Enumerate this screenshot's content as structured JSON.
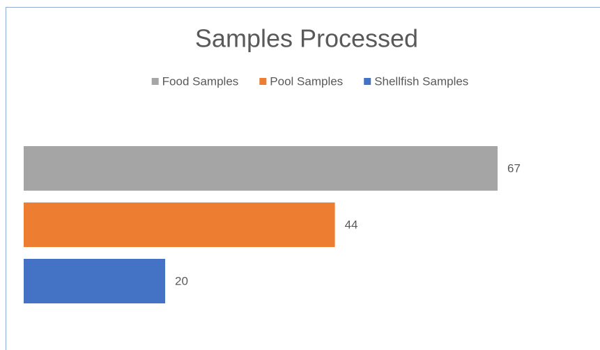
{
  "chart_data": {
    "type": "hbar",
    "title": "Samples Processed",
    "categories": [
      null
    ],
    "series": [
      {
        "name": "Food Samples",
        "color": "#a5a5a5",
        "values": [
          67
        ]
      },
      {
        "name": "Pool Samples",
        "color": "#ed7d31",
        "values": [
          44
        ]
      },
      {
        "name": "Shellfish Samples",
        "color": "#4472c4",
        "values": [
          20
        ]
      }
    ],
    "xlim": [
      0,
      80
    ],
    "legend": "top",
    "grid": false
  }
}
